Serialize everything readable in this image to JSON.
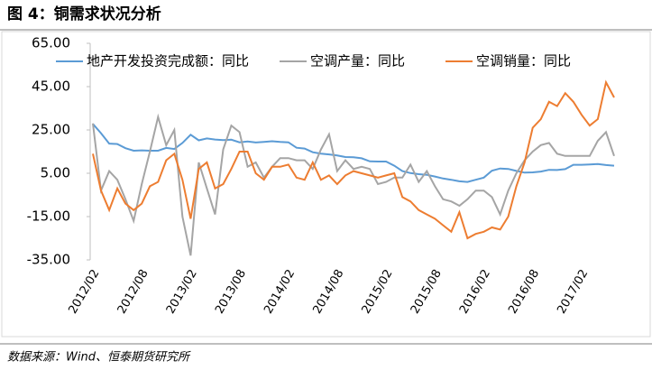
{
  "chart_data": {
    "type": "line",
    "title": "图 4：铜需求状况分析",
    "source": "数据来源：Wind、恒泰期货研究所",
    "categories": [
      "2012/02",
      null,
      null,
      null,
      null,
      null,
      "2012/08",
      null,
      null,
      null,
      null,
      null,
      "2013/02",
      null,
      null,
      null,
      null,
      null,
      "2013/08",
      null,
      null,
      null,
      null,
      null,
      "2014/02",
      null,
      null,
      null,
      null,
      null,
      "2014/08",
      null,
      null,
      null,
      null,
      null,
      "2015/02",
      null,
      null,
      null,
      null,
      null,
      "2015/08",
      null,
      null,
      null,
      null,
      null,
      "2016/02",
      null,
      null,
      null,
      null,
      null,
      "2016/08",
      null,
      null,
      null,
      null,
      null,
      "2017/02",
      null,
      null,
      null,
      null
    ],
    "series": [
      {
        "name": "地产开发投资完成额：同比",
        "color": "#5b9bd5",
        "values": [
          27.8,
          23.5,
          18.7,
          18.5,
          16.6,
          15.4,
          15.6,
          15.4,
          15.4,
          16.7,
          16.2,
          19,
          22.8,
          20.2,
          21.1,
          20.6,
          20.3,
          20.5,
          19.3,
          19.7,
          19.2,
          19.5,
          19.8,
          19.5,
          19.3,
          16.8,
          16.4,
          14.7,
          14.1,
          13.7,
          13.2,
          12.5,
          12.4,
          11.9,
          10.5,
          10.4,
          10.4,
          8.5,
          6.0,
          5.1,
          4.6,
          4.3,
          3.5,
          2.6,
          2.0,
          1.3,
          1.0,
          2.0,
          3.0,
          6.2,
          7.2,
          7.0,
          6.1,
          5.3,
          5.4,
          5.8,
          6.6,
          6.5,
          6.9,
          8.9,
          8.9,
          9.1,
          9.3,
          8.8,
          8.5
        ]
      },
      {
        "name": "空调产量：同比",
        "color": "#a5a5a5",
        "values": [
          28,
          -3,
          6,
          2,
          -7,
          -17,
          0,
          15,
          31,
          18,
          25,
          -15,
          -33,
          10,
          -2,
          -14,
          16,
          27,
          24,
          8,
          10,
          3,
          8,
          12,
          12,
          11,
          11,
          7,
          16,
          23,
          6,
          11,
          7,
          8,
          7,
          0,
          1,
          3,
          3,
          9,
          1,
          6,
          -1,
          -7,
          -8,
          -10,
          -7,
          -3,
          -3,
          -6,
          -14,
          -3,
          5,
          11,
          15,
          18,
          19,
          14,
          13,
          13,
          13,
          13,
          20,
          24,
          13
        ]
      },
      {
        "name": "空调销量：同比",
        "color": "#ed7d31",
        "values": [
          14,
          -3,
          -12,
          -2,
          -9,
          -12,
          -9,
          -1,
          1,
          11,
          14,
          2,
          -16,
          7,
          10,
          -2,
          0,
          7,
          15,
          15,
          5,
          2,
          8,
          8,
          9,
          3,
          2,
          10,
          2,
          4,
          0,
          4,
          6,
          5,
          4,
          3,
          4,
          5,
          -6,
          -8,
          -12,
          -14,
          -16,
          -19,
          -22,
          -13,
          -25,
          -23,
          -22,
          -20,
          -21,
          -15,
          -1,
          10,
          26,
          30,
          38,
          36,
          42,
          38,
          32,
          27,
          30,
          47,
          40
        ]
      }
    ],
    "ylim": [
      -35,
      65
    ],
    "yticks": [
      {
        "value": -35,
        "label": "-35.00"
      },
      {
        "value": -15,
        "label": "-15.00"
      },
      {
        "value": 5,
        "label": "5.00"
      },
      {
        "value": 25,
        "label": "25.00"
      },
      {
        "value": 45,
        "label": "45.00"
      },
      {
        "value": 65,
        "label": "65.00"
      }
    ]
  }
}
